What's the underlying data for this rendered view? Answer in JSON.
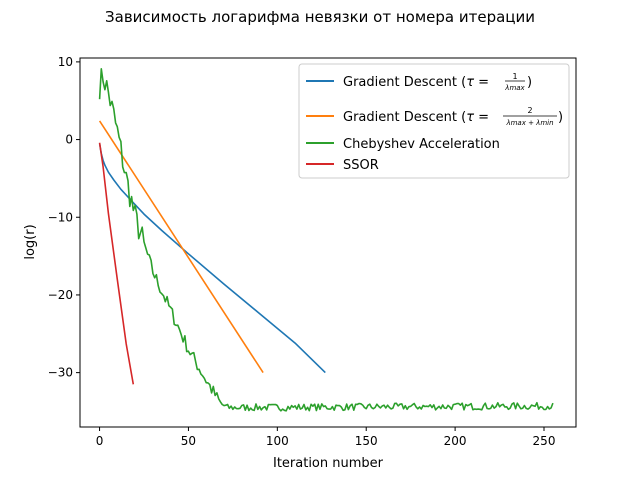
{
  "chart_data": {
    "type": "line",
    "title": "Зависимость логарифма невязки от номера итерации",
    "xlabel": "Iteration number",
    "ylabel": "log(r)",
    "xlim": [
      -11,
      268
    ],
    "ylim": [
      -37,
      10.5
    ],
    "xticks": [
      0,
      50,
      100,
      150,
      200,
      250
    ],
    "xtick_labels": [
      "0",
      "50",
      "100",
      "150",
      "200",
      "250"
    ],
    "yticks": [
      10,
      0,
      -10,
      -20,
      -30
    ],
    "ytick_labels": [
      "10",
      "0",
      "−10",
      "−20",
      "−30"
    ],
    "grid": false,
    "legend_position": "upper right",
    "series": [
      {
        "name": "Gradient Descent (τ = 1/λmax)",
        "legend_parts": {
          "prefix": "Gradient Descent (",
          "tau": "τ",
          "eq": " = ",
          "num": "1",
          "den": "λmax",
          "suffix": ")"
        },
        "color": "#1f77b4",
        "x": [
          0,
          1,
          2,
          3,
          5,
          8,
          12,
          18,
          25,
          35,
          50,
          70,
          90,
          110,
          127
        ],
        "y": [
          -0.5,
          -1.8,
          -2.7,
          -3.3,
          -4.2,
          -5.2,
          -6.4,
          -7.9,
          -9.6,
          -11.7,
          -14.7,
          -18.6,
          -22.4,
          -26.2,
          -30.0
        ]
      },
      {
        "name": "Gradient Descent (τ = 2/(λmax + λmin))",
        "legend_parts": {
          "prefix": "Gradient Descent (",
          "tau": "τ",
          "eq": " = ",
          "num": "2",
          "den": "λmax + λmin",
          "suffix": ")"
        },
        "color": "#ff7f0e",
        "x": [
          0,
          92
        ],
        "y": [
          2.4,
          -30.0
        ]
      },
      {
        "name": "Chebyshev Acceleration",
        "color": "#2ca02c",
        "x": [],
        "y": []
      },
      {
        "name": "SSOR",
        "color": "#d62728",
        "x": [
          0,
          2,
          5,
          10,
          15,
          19
        ],
        "y": [
          -0.4,
          -3.5,
          -9.5,
          -18.0,
          -26.3,
          -31.5
        ]
      }
    ]
  }
}
